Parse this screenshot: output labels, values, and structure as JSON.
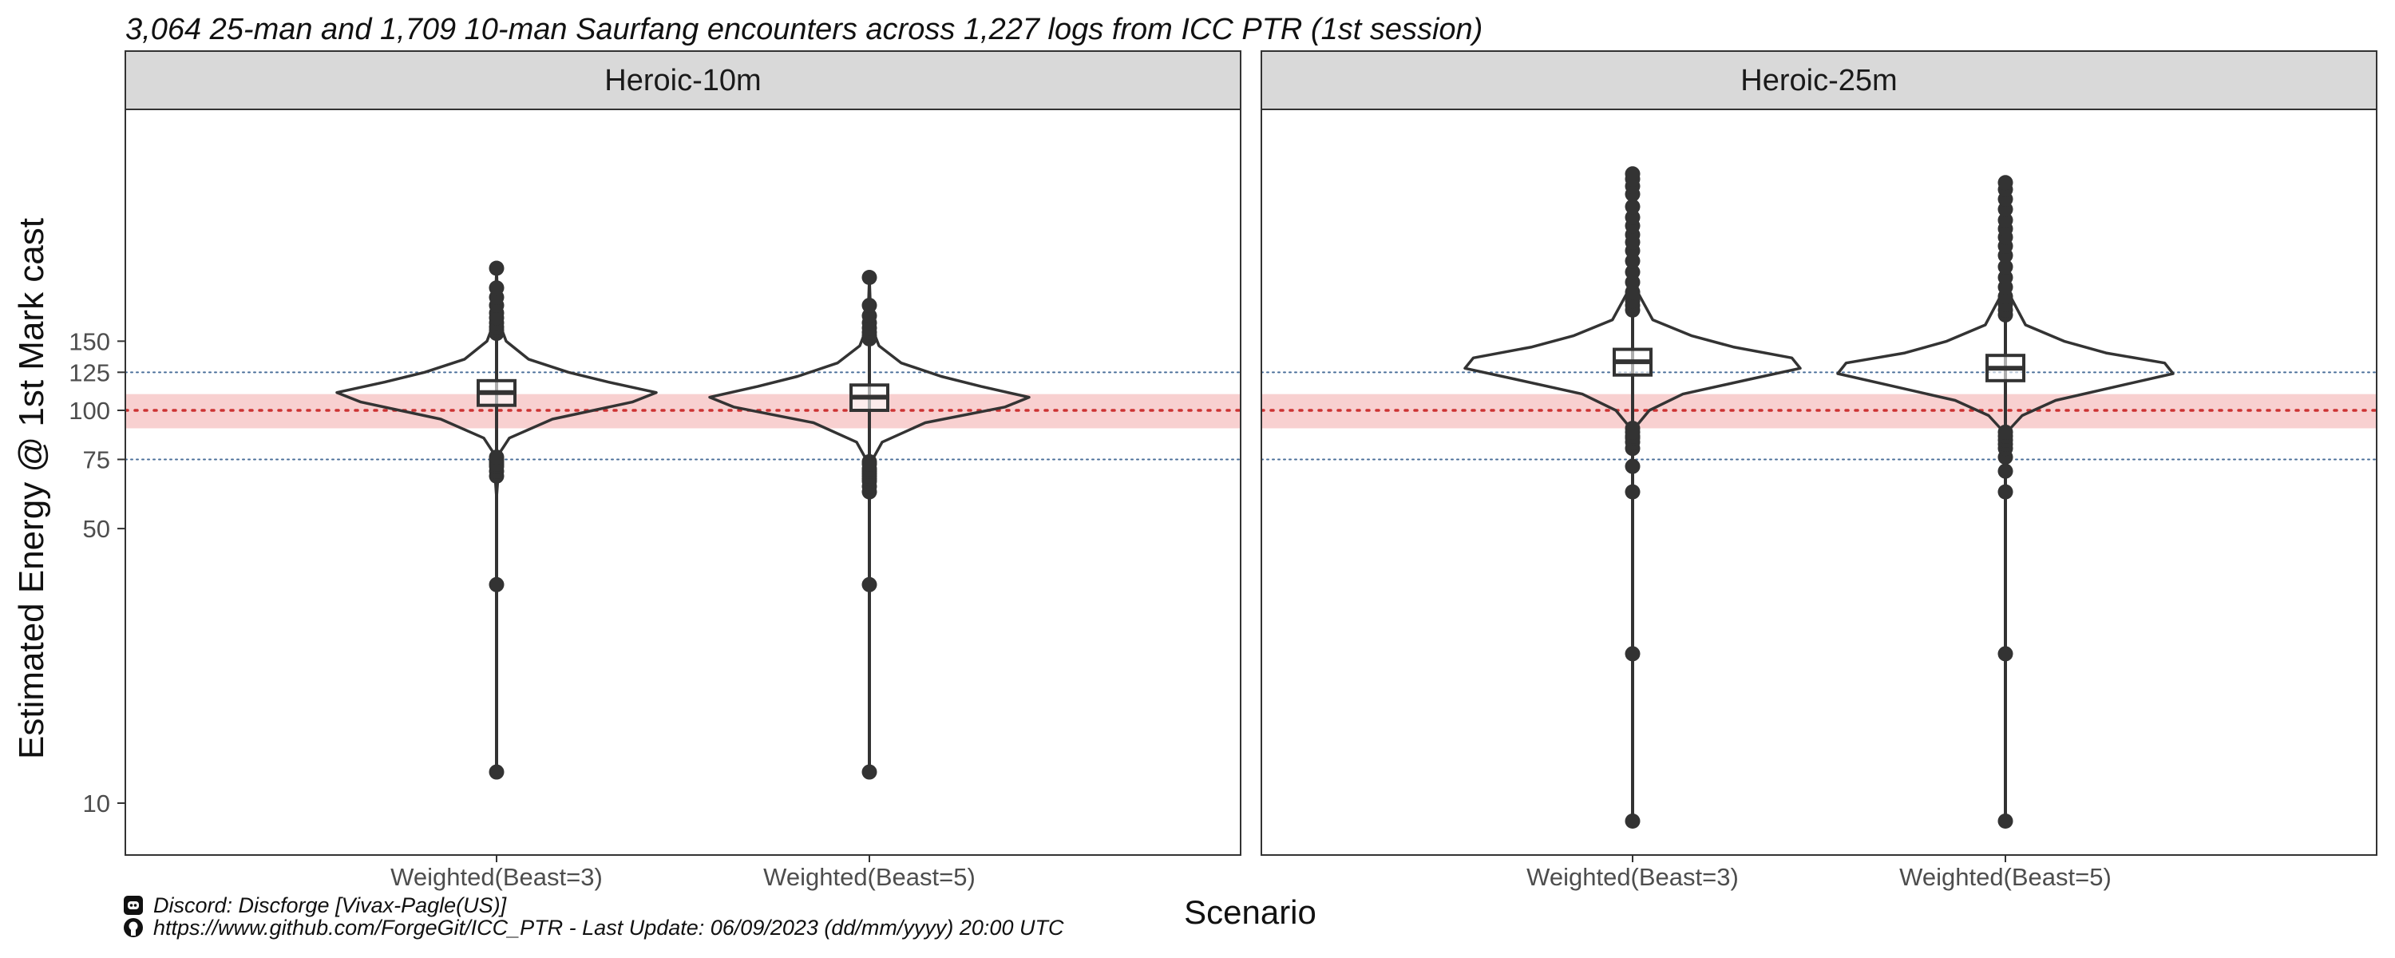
{
  "chart_data": {
    "type": "violin",
    "title": "3,064 25-man and 1,709 10-man Saurfang encounters across 1,227 logs from ICC PTR (1st session)",
    "xlabel": "Scenario",
    "ylabel": "Estimated Energy @ 1st Mark cast",
    "y_scale": "log",
    "ylim": [
      8,
      420
    ],
    "y_ticks": [
      10,
      50,
      75,
      100,
      125,
      150
    ],
    "reference_lines": [
      {
        "value": 100,
        "style": "dotted",
        "color": "#cc3333",
        "band": [
          90,
          110
        ],
        "band_color": "#f8d0d0"
      },
      {
        "value": 75,
        "style": "dotted",
        "color": "#4a6f9a"
      },
      {
        "value": 125,
        "style": "dotted",
        "color": "#4a6f9a"
      }
    ],
    "categories": [
      "Weighted(Beast=3)",
      "Weighted(Beast=5)"
    ],
    "panels": [
      {
        "name": "Heroic-10m",
        "series": [
          {
            "category": "Weighted(Beast=3)",
            "box": {
              "q1": 103,
              "median": 111,
              "q3": 119
            },
            "whisker": [
              78,
              155
            ],
            "outliers": [
              12,
              36,
              68,
              70,
              72,
              73,
              74,
              75,
              76,
              157,
              160,
              163,
              167,
              172,
              177,
              185,
              194,
              205,
              230
            ],
            "density": [
              [
                60,
                0.0
              ],
              [
                78,
                0.02
              ],
              [
                85,
                0.08
              ],
              [
                95,
                0.35
              ],
              [
                105,
                0.85
              ],
              [
                111,
                1.0
              ],
              [
                118,
                0.7
              ],
              [
                125,
                0.45
              ],
              [
                135,
                0.2
              ],
              [
                150,
                0.06
              ],
              [
                170,
                0.01
              ],
              [
                230,
                0.0
              ]
            ]
          },
          {
            "category": "Weighted(Beast=5)",
            "box": {
              "q1": 100,
              "median": 108,
              "q3": 116
            },
            "whisker": [
              76,
              150
            ],
            "outliers": [
              12,
              36,
              62,
              64,
              66,
              67,
              68,
              69,
              70,
              71,
              73,
              74,
              152,
              155,
              158,
              162,
              167,
              174,
              185,
              218
            ],
            "density": [
              [
                58,
                0.0
              ],
              [
                75,
                0.02
              ],
              [
                83,
                0.08
              ],
              [
                93,
                0.35
              ],
              [
                102,
                0.85
              ],
              [
                108,
                1.0
              ],
              [
                115,
                0.7
              ],
              [
                122,
                0.45
              ],
              [
                132,
                0.2
              ],
              [
                146,
                0.06
              ],
              [
                165,
                0.01
              ],
              [
                218,
                0.0
              ]
            ]
          }
        ]
      },
      {
        "name": "Heroic-25m",
        "series": [
          {
            "category": "Weighted(Beast=3)",
            "box": {
              "q1": 123,
              "median": 133,
              "q3": 143
            },
            "whisker": [
              92,
              175
            ],
            "outliers": [
              9,
              24,
              62,
              72,
              80,
              83,
              85,
              86,
              88,
              90,
              180,
              185,
              190,
              200,
              212,
              225,
              240,
              255,
              268,
              280,
              295,
              310,
              330,
              355,
              372,
              388,
              400
            ],
            "density": [
              [
                80,
                0.0
              ],
              [
                92,
                0.03
              ],
              [
                100,
                0.1
              ],
              [
                110,
                0.3
              ],
              [
                120,
                0.7
              ],
              [
                128,
                1.0
              ],
              [
                136,
                0.95
              ],
              [
                145,
                0.6
              ],
              [
                155,
                0.35
              ],
              [
                170,
                0.12
              ],
              [
                200,
                0.03
              ],
              [
                250,
                0.01
              ],
              [
                400,
                0.0
              ]
            ]
          },
          {
            "category": "Weighted(Beast=5)",
            "box": {
              "q1": 119,
              "median": 128,
              "q3": 138
            },
            "whisker": [
              90,
              170
            ],
            "outliers": [
              9,
              24,
              62,
              70,
              76,
              80,
              82,
              84,
              86,
              88,
              175,
              180,
              186,
              195,
              206,
              218,
              232,
              248,
              262,
              276,
              290,
              305,
              325,
              345,
              365,
              380
            ],
            "density": [
              [
                78,
                0.0
              ],
              [
                90,
                0.03
              ],
              [
                97,
                0.1
              ],
              [
                106,
                0.3
              ],
              [
                116,
                0.7
              ],
              [
                124,
                1.0
              ],
              [
                132,
                0.95
              ],
              [
                140,
                0.6
              ],
              [
                150,
                0.35
              ],
              [
                165,
                0.12
              ],
              [
                195,
                0.03
              ],
              [
                245,
                0.01
              ],
              [
                380,
                0.0
              ]
            ]
          }
        ]
      }
    ],
    "grid": false,
    "legend": "none"
  },
  "footer": {
    "discord": "Discord: Discforge [Vivax-Pagle(US)]",
    "github_url": "https://www.github.com/ForgeGit/ICC_PTR",
    "update": " - Last Update: 06/09/2023 (dd/mm/yyyy) 20:00 UTC",
    "discord_icon": "discord-icon",
    "github_icon": "github-icon"
  }
}
